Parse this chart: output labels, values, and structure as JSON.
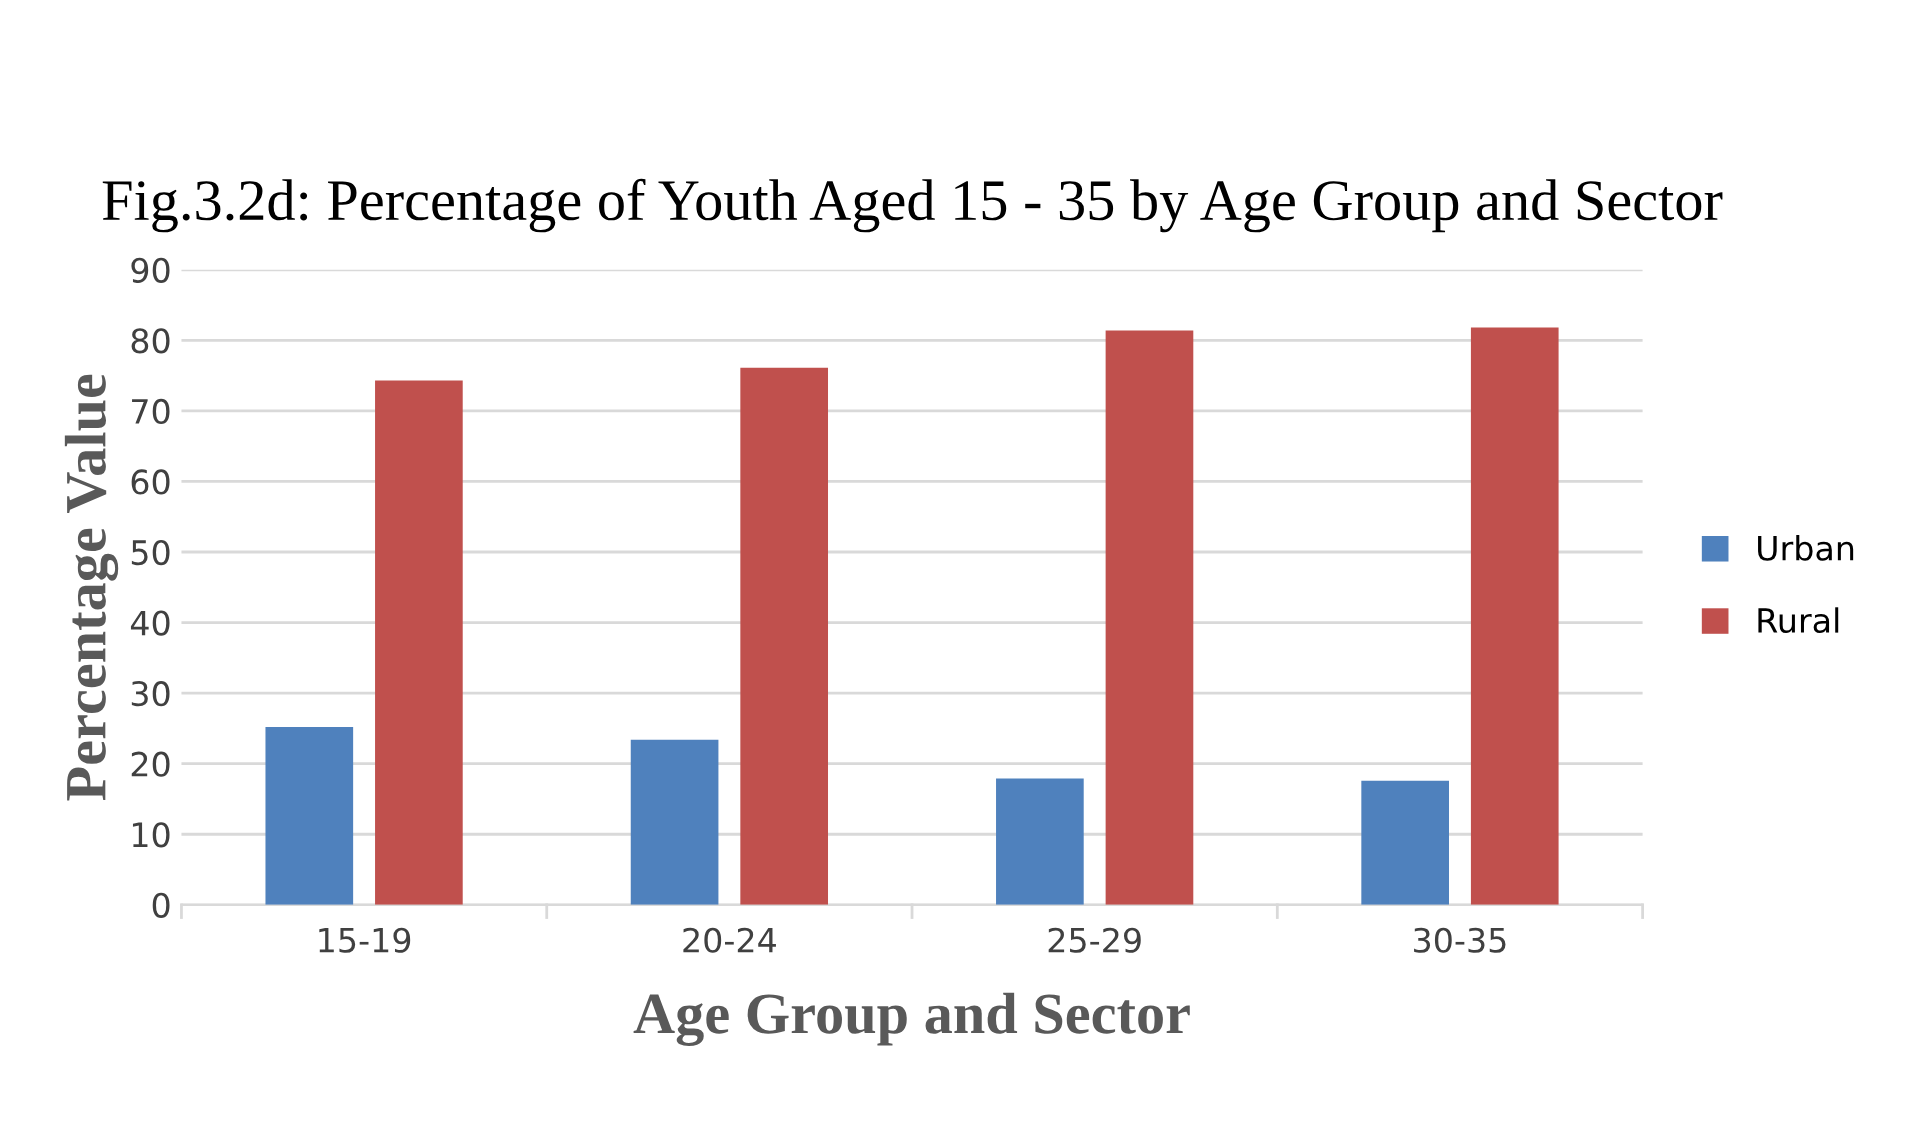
{
  "chart_data": {
    "type": "bar",
    "title": "Fig.3.2d: Percentage of Youth Aged 15 - 35 by Age Group and Sector",
    "xlabel": "Age Group and Sector",
    "ylabel": "Percentage Value",
    "categories": [
      "15-19",
      "20-24",
      "25-29",
      "30-35"
    ],
    "series": [
      {
        "name": "Urban",
        "color": "#4f81bd",
        "values": [
          25.2,
          23.4,
          17.9,
          17.6
        ]
      },
      {
        "name": "Rural",
        "color": "#c0504d",
        "values": [
          74.3,
          76.1,
          81.4,
          81.8
        ]
      }
    ],
    "ylim": [
      0,
      90
    ],
    "yticks": [
      0,
      10,
      20,
      30,
      40,
      50,
      60,
      70,
      80,
      90
    ],
    "grid": "y",
    "legend": "right"
  }
}
